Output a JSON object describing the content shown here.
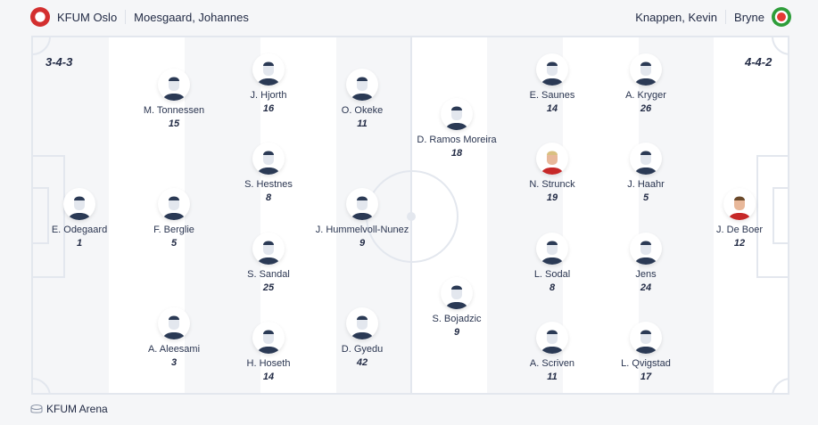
{
  "home": {
    "team": "KFUM Oslo",
    "coach": "Moesgaard, Johannes",
    "formation": "3-4-3",
    "logo_color": "#d32f2f",
    "players": [
      {
        "name": "E. Odegaard",
        "number": "1"
      },
      {
        "name": "M. Tonnessen",
        "number": "15"
      },
      {
        "name": "F. Berglie",
        "number": "5"
      },
      {
        "name": "A. Aleesami",
        "number": "3"
      },
      {
        "name": "J. Hjorth",
        "number": "16"
      },
      {
        "name": "S. Hestnes",
        "number": "8"
      },
      {
        "name": "S. Sandal",
        "number": "25"
      },
      {
        "name": "H. Hoseth",
        "number": "14"
      },
      {
        "name": "O. Okeke",
        "number": "11"
      },
      {
        "name": "J. Hummelvoll-Nunez",
        "number": "9"
      },
      {
        "name": "D. Gyedu",
        "number": "42"
      }
    ]
  },
  "away": {
    "team": "Bryne",
    "coach": "Knappen, Kevin",
    "formation": "4-4-2",
    "logo_color": "#2e9d3a",
    "players": [
      {
        "name": "D. Ramos Moreira",
        "number": "18"
      },
      {
        "name": "S. Bojadzic",
        "number": "9"
      },
      {
        "name": "E. Saunes",
        "number": "14"
      },
      {
        "name": "N. Strunck",
        "number": "19",
        "photo": true
      },
      {
        "name": "L. Sodal",
        "number": "8"
      },
      {
        "name": "A. Scriven",
        "number": "11"
      },
      {
        "name": "A. Kryger",
        "number": "26"
      },
      {
        "name": "J. Haahr",
        "number": "5"
      },
      {
        "name": "Jens",
        "number": "24"
      },
      {
        "name": "L. Qvigstad",
        "number": "17"
      },
      {
        "name": "J. De Boer",
        "number": "12",
        "photo": true
      }
    ]
  },
  "venue": {
    "name": "KFUM Arena",
    "icon": "stadium-icon"
  }
}
